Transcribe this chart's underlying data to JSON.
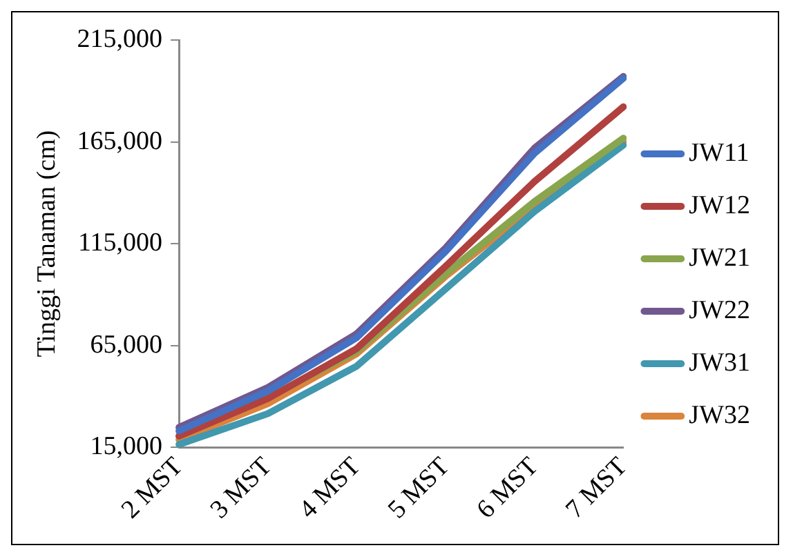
{
  "chart_data": {
    "type": "line",
    "ylabel": "Tinggi Tanaman (cm)",
    "categories": [
      "2 MST",
      "3 MST",
      "4 MST",
      "5 MST",
      "6 MST",
      "7 MST"
    ],
    "series": [
      {
        "name": "JW11",
        "color": "#4472c4",
        "values": [
          23100,
          42700,
          68900,
          111200,
          159400,
          196200
        ]
      },
      {
        "name": "JW12",
        "color": "#b0413e",
        "values": [
          20600,
          39000,
          63500,
          103900,
          145500,
          182200
        ]
      },
      {
        "name": "JW21",
        "color": "#89a54e",
        "values": [
          20600,
          39500,
          62200,
          100200,
          135700,
          166800
        ]
      },
      {
        "name": "JW22",
        "color": "#71588f",
        "values": [
          24800,
          44400,
          70800,
          112900,
          161900,
          197100
        ]
      },
      {
        "name": "JW31",
        "color": "#4198af",
        "values": [
          16500,
          31600,
          54900,
          92800,
          130800,
          163400
        ]
      },
      {
        "name": "JW32",
        "color": "#db843d",
        "values": [
          18900,
          36500,
          61000,
          99000,
          133300,
          165000
        ]
      }
    ],
    "ylim": [
      15000,
      215000
    ],
    "yticks": [
      {
        "value": 15000,
        "label": "15,000"
      },
      {
        "value": 65000,
        "label": "65,000"
      },
      {
        "value": 115000,
        "label": "115,000"
      },
      {
        "value": 165000,
        "label": "165,000"
      },
      {
        "value": 215000,
        "label": "215,000"
      }
    ],
    "grid": false,
    "legend": "right",
    "marker": "none"
  }
}
